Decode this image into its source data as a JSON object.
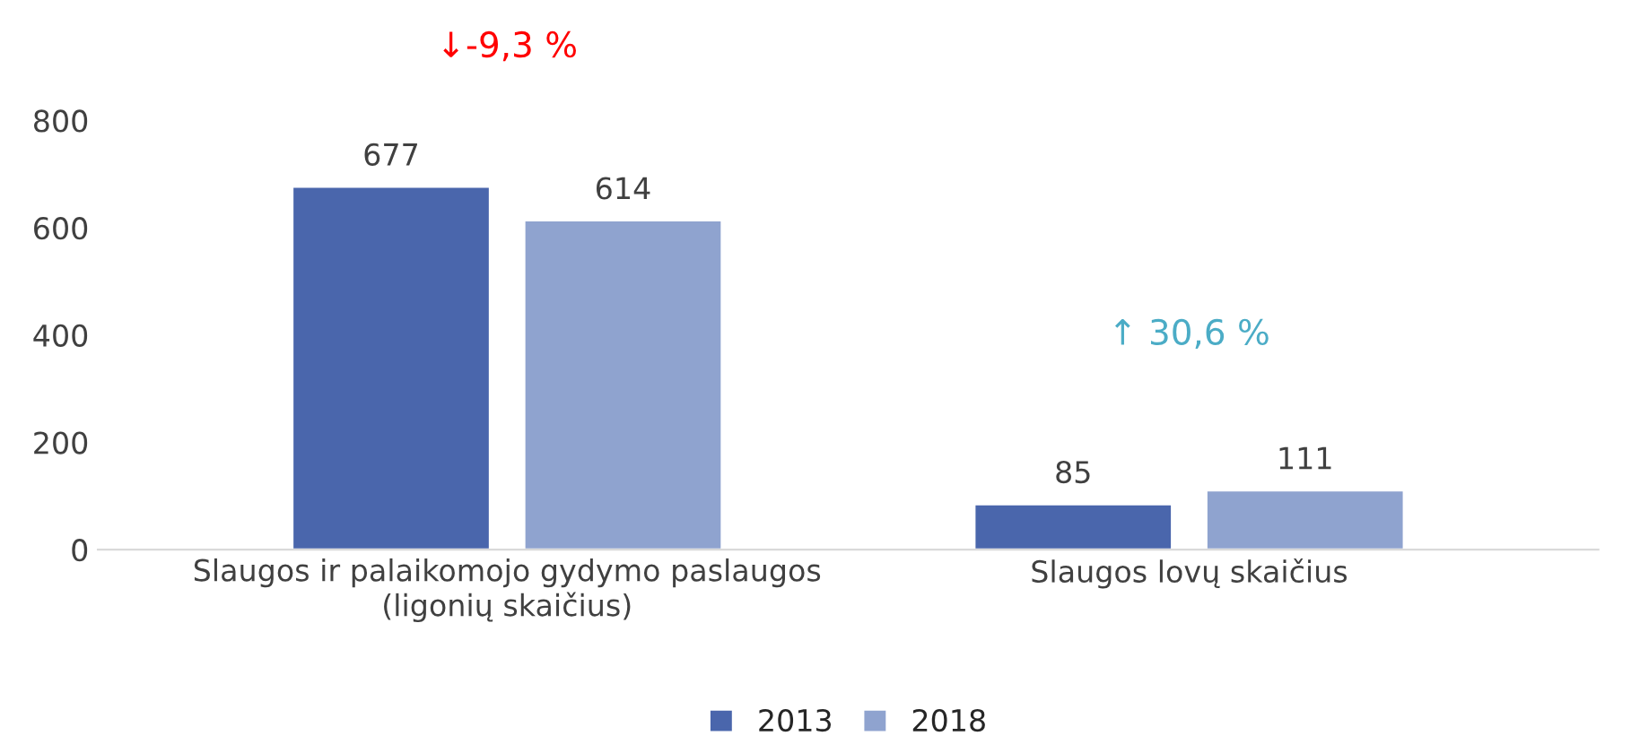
{
  "chart_data": {
    "type": "bar",
    "categories": [
      "Slaugos ir palaikomojo gydymo paslaugos\n(ligonių skaičius)",
      "Slaugos lovų skaičius"
    ],
    "series": [
      {
        "name": "2013",
        "color": "#4a66ac",
        "values": [
          677,
          85
        ]
      },
      {
        "name": "2018",
        "color": "#8fa3cf",
        "values": [
          614,
          111
        ]
      }
    ],
    "ylim": [
      0,
      800
    ],
    "yticks": [
      0,
      200,
      400,
      600,
      800
    ],
    "data_labels": true,
    "legend": "bottom",
    "grid": false,
    "annotations": [
      "↓-9,3 %",
      "↑ 30,6 %"
    ]
  }
}
